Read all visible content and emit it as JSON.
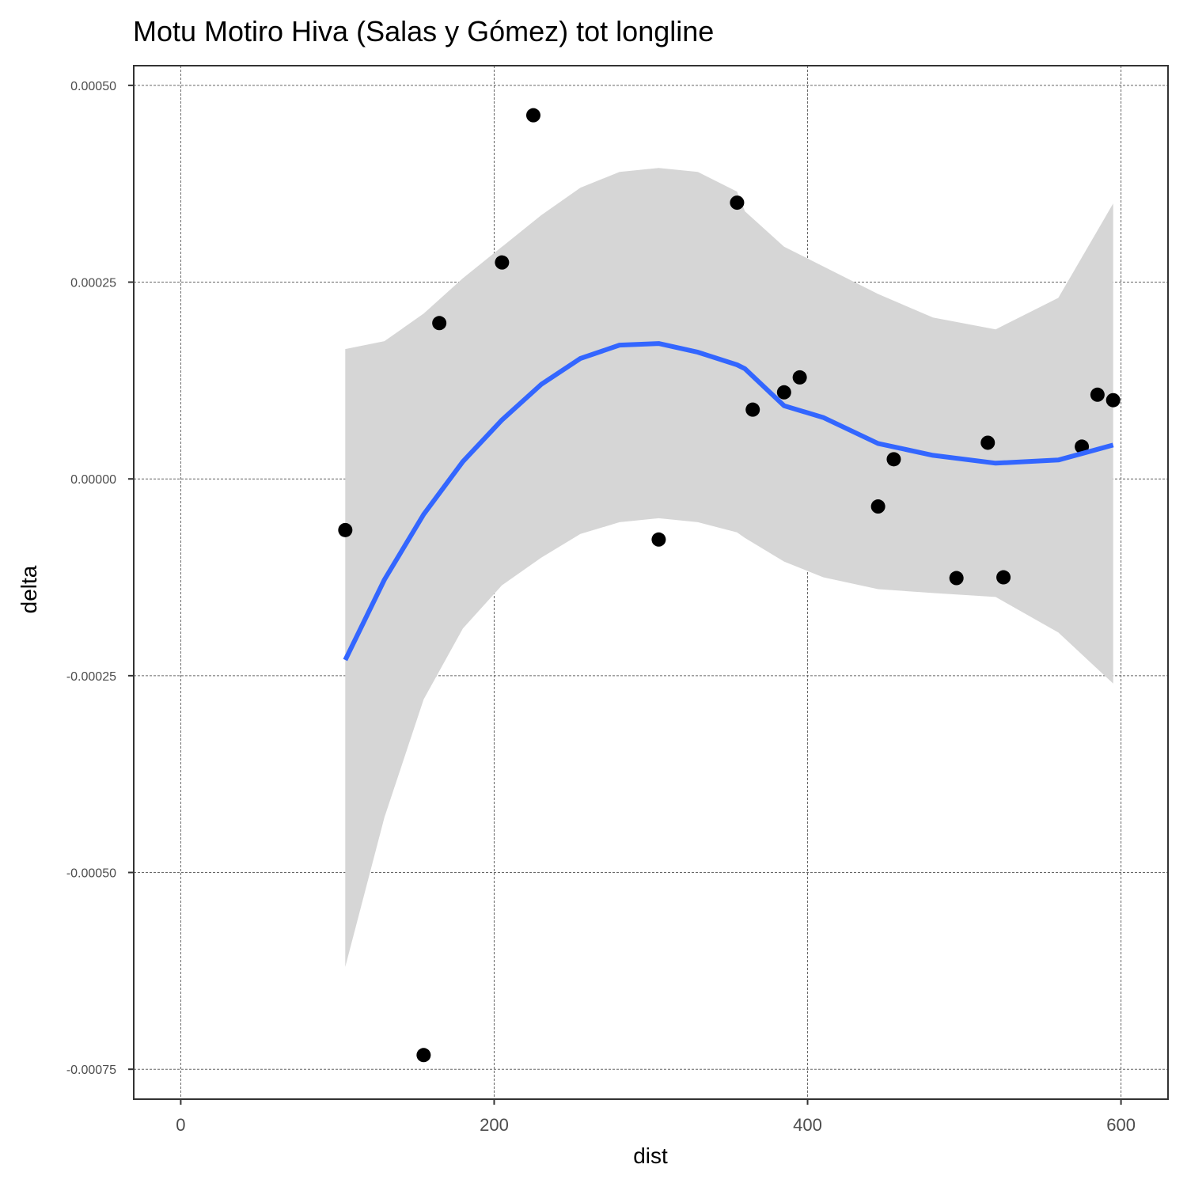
{
  "chart_data": {
    "type": "scatter",
    "title": "Motu Motiro Hiva (Salas y Gómez) tot longline",
    "xlabel": "dist",
    "ylabel": "delta",
    "xlim": [
      -30,
      630
    ],
    "ylim": [
      -0.000788,
      0.000525
    ],
    "x_ticks": [
      0,
      200,
      400,
      600
    ],
    "x_tick_labels": [
      "0",
      "200",
      "400",
      "600"
    ],
    "y_ticks": [
      0.0005,
      0.00025,
      0,
      -0.00025,
      -0.0005,
      -0.00075
    ],
    "y_tick_labels": [
      "0.00050",
      "0.00025",
      "0.00000",
      "-0.00025",
      "-0.00050",
      "-0.00075"
    ],
    "grid": true,
    "points": {
      "x": [
        105,
        155,
        165,
        205,
        225,
        305,
        355,
        365,
        385,
        395,
        445,
        455,
        495,
        515,
        525,
        575,
        585,
        595
      ],
      "y": [
        -6.5e-05,
        -0.000732,
        0.000198,
        0.000275,
        0.000462,
        -7.7e-05,
        0.000351,
        8.8e-05,
        0.00011,
        0.000129,
        -3.5e-05,
        2.5e-05,
        -0.000126,
        4.6e-05,
        -0.000125,
        4.1e-05,
        0.000107,
        0.0001
      ],
      "color": "#000000"
    },
    "smooth": {
      "color": "#3366FF",
      "x": [
        105,
        130,
        155,
        180,
        205,
        230,
        255,
        280,
        305,
        330,
        355,
        360,
        385,
        410,
        445,
        480,
        520,
        560,
        595
      ],
      "y": [
        -0.00023,
        -0.000128,
        -4.5e-05,
        2.2e-05,
        7.5e-05,
        0.00012,
        0.000153,
        0.00017,
        0.000172,
        0.000161,
        0.000145,
        0.00014,
        9.3e-05,
        7.8e-05,
        4.5e-05,
        3e-05,
        2e-05,
        2.4e-05,
        4.3e-05
      ],
      "upper": [
        0.000165,
        0.000175,
        0.00021,
        0.000255,
        0.000295,
        0.000335,
        0.00037,
        0.00039,
        0.000395,
        0.00039,
        0.000365,
        0.00034,
        0.000295,
        0.00027,
        0.000235,
        0.000205,
        0.00019,
        0.00023,
        0.00035
      ],
      "lower": [
        -0.00062,
        -0.00043,
        -0.00028,
        -0.00019,
        -0.000135,
        -0.0001,
        -7e-05,
        -5.5e-05,
        -5e-05,
        -5.5e-05,
        -6.8e-05,
        -7.5e-05,
        -0.000105,
        -0.000125,
        -0.00014,
        -0.000145,
        -0.00015,
        -0.000195,
        -0.00026
      ],
      "ribbon_color": "#d6d6d6"
    }
  }
}
